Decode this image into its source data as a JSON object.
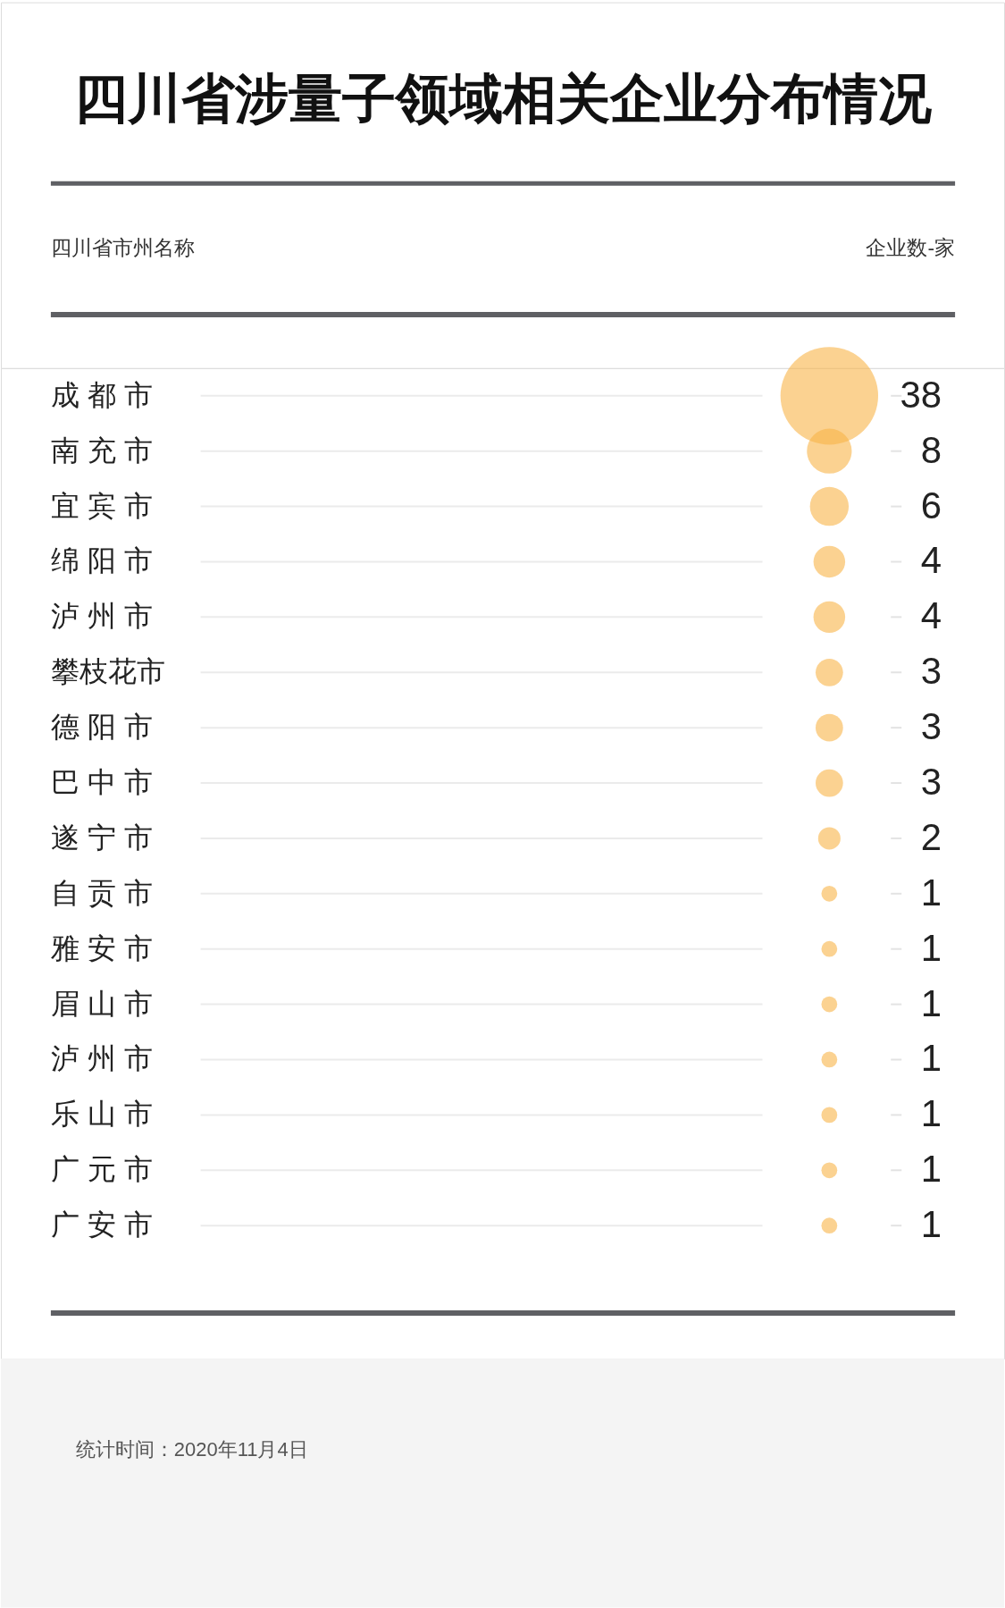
{
  "chart_data": {
    "type": "other",
    "title": "四川省涉量子领域相关企业分布情况",
    "categories": [
      "成 都 市",
      "南 充 市",
      "宜 宾 市",
      "绵 阳 市",
      "泸 州 市",
      "攀枝花市",
      "德 阳 市",
      "巴 中 市",
      "遂 宁 市",
      "自 贡 市",
      "雅 安 市",
      "眉 山 市",
      "泸 州 市",
      "乐 山 市",
      "广 元 市",
      "广 安 市"
    ],
    "values": [
      38,
      8,
      6,
      4,
      4,
      3,
      3,
      3,
      2,
      1,
      1,
      1,
      1,
      1,
      1,
      1
    ],
    "color": "#f8b448",
    "data_labels": true,
    "annotations": [
      "四川省市州名称",
      "企业数-家",
      "统计时间：2020年11月4日"
    ]
  }
}
